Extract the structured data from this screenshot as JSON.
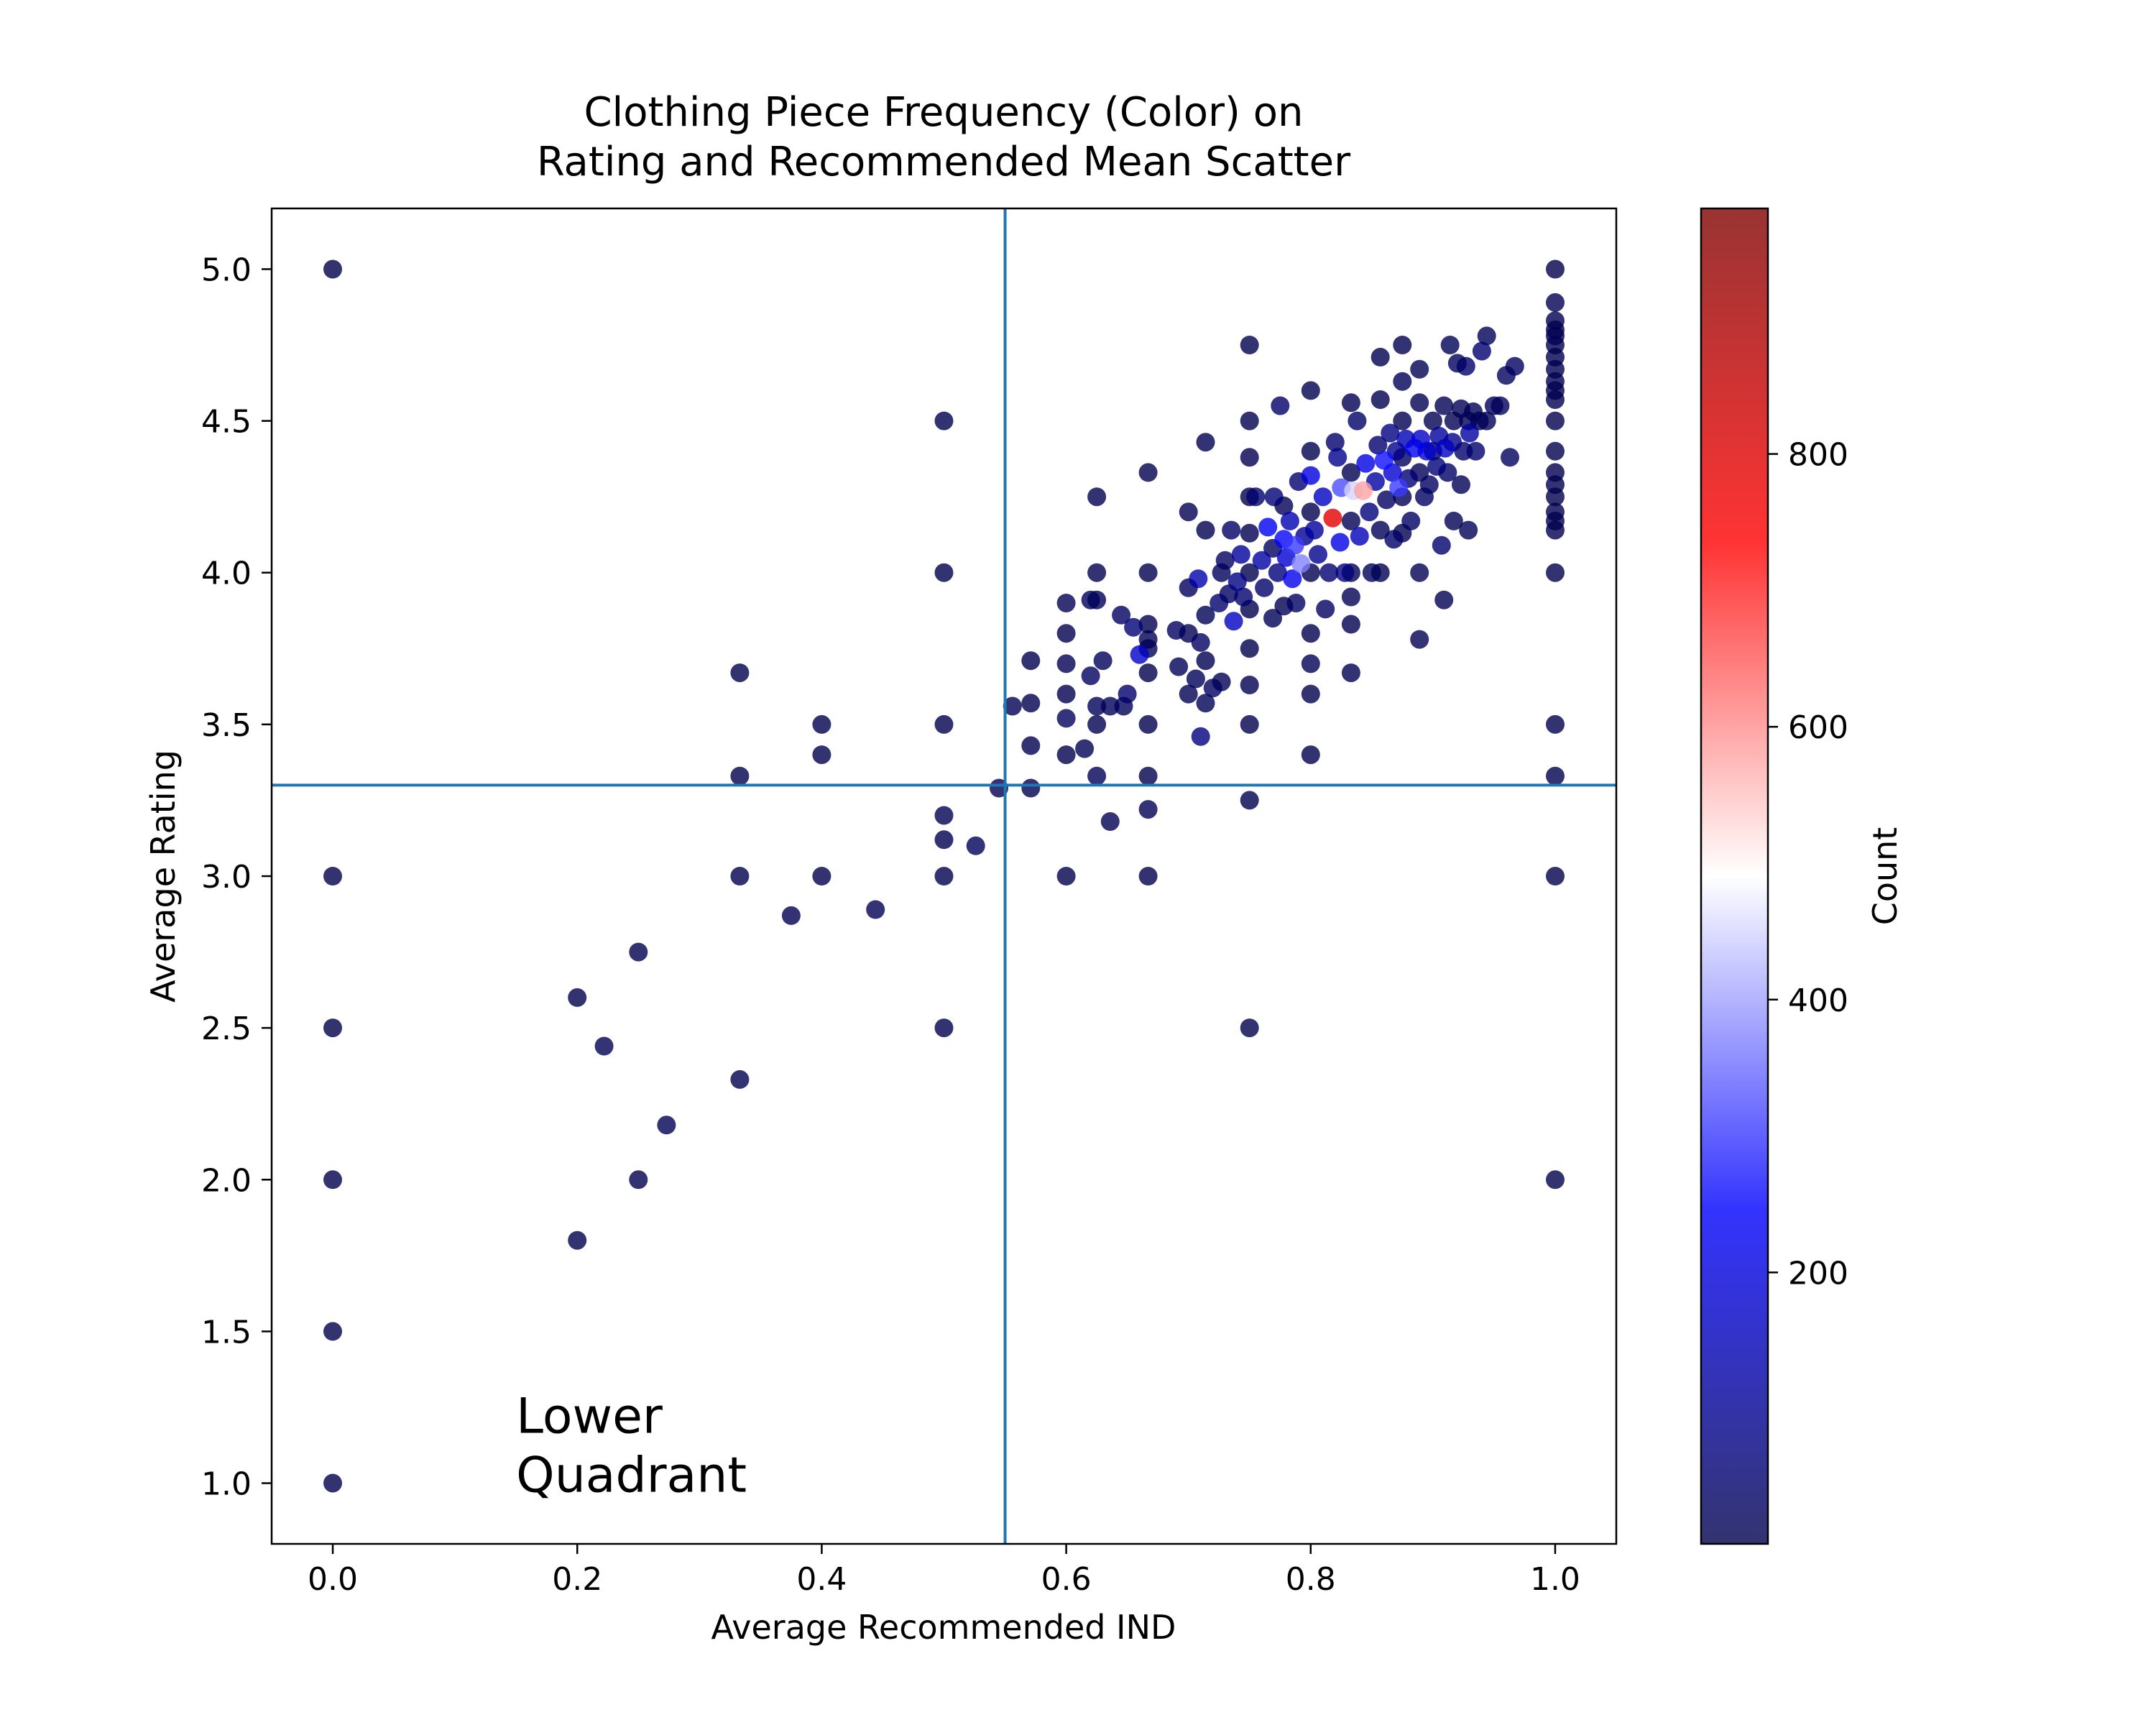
{
  "chart_data": {
    "type": "scatter",
    "title_line1": "Clothing Piece Frequency (Color) on",
    "title_line2": "Rating and Recommended Mean Scatter",
    "xlabel": "Average Recommended IND",
    "ylabel": "Average Rating",
    "xlim": [
      -0.05,
      1.05
    ],
    "ylim": [
      0.8,
      5.2
    ],
    "x_ticks": [
      "0.0",
      "0.2",
      "0.4",
      "0.6",
      "0.8",
      "1.0"
    ],
    "y_ticks": [
      "1.0",
      "1.5",
      "2.0",
      "2.5",
      "3.0",
      "3.5",
      "4.0",
      "4.5",
      "5.0"
    ],
    "vline_x": 0.55,
    "hline_y": 3.3,
    "line_color": "#1f77b4",
    "annotation": {
      "line1": "Lower",
      "line2": "Quadrant",
      "x": 0.15,
      "y": 1.0
    },
    "colorbar": {
      "label": "Count",
      "range": [
        1,
        980
      ],
      "ticks": [
        "200",
        "400",
        "600",
        "800"
      ],
      "colormap": "seismic",
      "colors": [
        "#00004c",
        "#0000ff",
        "#ffffff",
        "#ff0000",
        "#800000"
      ]
    },
    "points": [
      {
        "x": 0.0,
        "y": 5.0,
        "c": 1
      },
      {
        "x": 0.0,
        "y": 3.0,
        "c": 1
      },
      {
        "x": 0.0,
        "y": 2.5,
        "c": 1
      },
      {
        "x": 0.0,
        "y": 2.0,
        "c": 1
      },
      {
        "x": 0.0,
        "y": 1.5,
        "c": 1
      },
      {
        "x": 0.0,
        "y": 1.0,
        "c": 1
      },
      {
        "x": 0.2,
        "y": 2.6,
        "c": 5
      },
      {
        "x": 0.2,
        "y": 1.8,
        "c": 5
      },
      {
        "x": 0.222,
        "y": 2.44,
        "c": 9
      },
      {
        "x": 0.25,
        "y": 2.75,
        "c": 4
      },
      {
        "x": 0.25,
        "y": 2.0,
        "c": 4
      },
      {
        "x": 0.273,
        "y": 2.18,
        "c": 11
      },
      {
        "x": 0.333,
        "y": 3.67,
        "c": 3
      },
      {
        "x": 0.333,
        "y": 3.33,
        "c": 3
      },
      {
        "x": 0.333,
        "y": 3.0,
        "c": 3
      },
      {
        "x": 0.333,
        "y": 2.33,
        "c": 3
      },
      {
        "x": 0.375,
        "y": 2.87,
        "c": 8
      },
      {
        "x": 0.4,
        "y": 3.5,
        "c": 5
      },
      {
        "x": 0.4,
        "y": 3.4,
        "c": 5
      },
      {
        "x": 0.4,
        "y": 3.0,
        "c": 5
      },
      {
        "x": 0.444,
        "y": 2.89,
        "c": 9
      },
      {
        "x": 0.5,
        "y": 4.5,
        "c": 2
      },
      {
        "x": 0.5,
        "y": 4.0,
        "c": 2
      },
      {
        "x": 0.5,
        "y": 3.5,
        "c": 2
      },
      {
        "x": 0.5,
        "y": 3.2,
        "c": 10
      },
      {
        "x": 0.5,
        "y": 3.12,
        "c": 8
      },
      {
        "x": 0.5,
        "y": 3.0,
        "c": 2
      },
      {
        "x": 0.5,
        "y": 2.5,
        "c": 2
      },
      {
        "x": 0.526,
        "y": 3.1,
        "c": 19
      },
      {
        "x": 0.545,
        "y": 3.29,
        "c": 11
      },
      {
        "x": 0.556,
        "y": 3.56,
        "c": 9
      },
      {
        "x": 0.571,
        "y": 3.71,
        "c": 7
      },
      {
        "x": 0.571,
        "y": 3.57,
        "c": 7
      },
      {
        "x": 0.571,
        "y": 3.43,
        "c": 7
      },
      {
        "x": 0.571,
        "y": 3.29,
        "c": 7
      },
      {
        "x": 0.6,
        "y": 3.9,
        "c": 10
      },
      {
        "x": 0.6,
        "y": 3.8,
        "c": 5
      },
      {
        "x": 0.6,
        "y": 3.7,
        "c": 10
      },
      {
        "x": 0.6,
        "y": 3.6,
        "c": 5
      },
      {
        "x": 0.6,
        "y": 3.52,
        "c": 25
      },
      {
        "x": 0.6,
        "y": 3.4,
        "c": 5
      },
      {
        "x": 0.6,
        "y": 3.0,
        "c": 5
      },
      {
        "x": 0.615,
        "y": 3.42,
        "c": 13
      },
      {
        "x": 0.62,
        "y": 3.91,
        "c": 21
      },
      {
        "x": 0.625,
        "y": 4.25,
        "c": 8
      },
      {
        "x": 0.625,
        "y": 4.0,
        "c": 8
      },
      {
        "x": 0.625,
        "y": 3.91,
        "c": 16
      },
      {
        "x": 0.625,
        "y": 3.56,
        "c": 16
      },
      {
        "x": 0.625,
        "y": 3.5,
        "c": 8
      },
      {
        "x": 0.625,
        "y": 3.33,
        "c": 16
      },
      {
        "x": 0.62,
        "y": 3.66,
        "c": 25
      },
      {
        "x": 0.63,
        "y": 3.71,
        "c": 22
      },
      {
        "x": 0.636,
        "y": 3.18,
        "c": 11
      },
      {
        "x": 0.636,
        "y": 3.56,
        "c": 22
      },
      {
        "x": 0.645,
        "y": 3.86,
        "c": 31
      },
      {
        "x": 0.65,
        "y": 3.6,
        "c": 40
      },
      {
        "x": 0.647,
        "y": 3.56,
        "c": 17
      },
      {
        "x": 0.667,
        "y": 4.33,
        "c": 3
      },
      {
        "x": 0.667,
        "y": 4.0,
        "c": 3
      },
      {
        "x": 0.667,
        "y": 3.83,
        "c": 6
      },
      {
        "x": 0.667,
        "y": 3.78,
        "c": 9
      },
      {
        "x": 0.667,
        "y": 3.75,
        "c": 12
      },
      {
        "x": 0.667,
        "y": 3.67,
        "c": 3
      },
      {
        "x": 0.667,
        "y": 3.5,
        "c": 6
      },
      {
        "x": 0.667,
        "y": 3.33,
        "c": 3
      },
      {
        "x": 0.667,
        "y": 3.22,
        "c": 9
      },
      {
        "x": 0.667,
        "y": 3.0,
        "c": 3
      },
      {
        "x": 0.66,
        "y": 3.73,
        "c": 170
      },
      {
        "x": 0.655,
        "y": 3.82,
        "c": 58
      },
      {
        "x": 0.69,
        "y": 3.81,
        "c": 29
      },
      {
        "x": 0.692,
        "y": 3.69,
        "c": 13
      },
      {
        "x": 0.7,
        "y": 4.2,
        "c": 10
      },
      {
        "x": 0.7,
        "y": 3.95,
        "c": 20
      },
      {
        "x": 0.7,
        "y": 3.8,
        "c": 10
      },
      {
        "x": 0.7,
        "y": 3.6,
        "c": 10
      },
      {
        "x": 0.706,
        "y": 3.65,
        "c": 17
      },
      {
        "x": 0.708,
        "y": 3.98,
        "c": 130
      },
      {
        "x": 0.71,
        "y": 3.77,
        "c": 31
      },
      {
        "x": 0.71,
        "y": 3.46,
        "c": 70
      },
      {
        "x": 0.714,
        "y": 4.43,
        "c": 7
      },
      {
        "x": 0.714,
        "y": 4.14,
        "c": 7
      },
      {
        "x": 0.714,
        "y": 3.86,
        "c": 14
      },
      {
        "x": 0.714,
        "y": 3.71,
        "c": 7
      },
      {
        "x": 0.714,
        "y": 3.57,
        "c": 14
      },
      {
        "x": 0.72,
        "y": 3.62,
        "c": 25
      },
      {
        "x": 0.725,
        "y": 3.9,
        "c": 40
      },
      {
        "x": 0.727,
        "y": 4.0,
        "c": 22
      },
      {
        "x": 0.727,
        "y": 3.64,
        "c": 11
      },
      {
        "x": 0.73,
        "y": 4.04,
        "c": 26
      },
      {
        "x": 0.733,
        "y": 3.93,
        "c": 30
      },
      {
        "x": 0.735,
        "y": 4.14,
        "c": 34
      },
      {
        "x": 0.737,
        "y": 3.84,
        "c": 160
      },
      {
        "x": 0.74,
        "y": 3.97,
        "c": 80
      },
      {
        "x": 0.745,
        "y": 3.92,
        "c": 47
      },
      {
        "x": 0.743,
        "y": 4.06,
        "c": 110
      },
      {
        "x": 0.75,
        "y": 4.75,
        "c": 4
      },
      {
        "x": 0.75,
        "y": 4.5,
        "c": 4
      },
      {
        "x": 0.75,
        "y": 4.38,
        "c": 8
      },
      {
        "x": 0.75,
        "y": 4.25,
        "c": 4
      },
      {
        "x": 0.75,
        "y": 4.13,
        "c": 8
      },
      {
        "x": 0.75,
        "y": 4.0,
        "c": 4
      },
      {
        "x": 0.75,
        "y": 3.88,
        "c": 8
      },
      {
        "x": 0.75,
        "y": 3.75,
        "c": 4
      },
      {
        "x": 0.75,
        "y": 3.63,
        "c": 8
      },
      {
        "x": 0.75,
        "y": 3.5,
        "c": 4
      },
      {
        "x": 0.75,
        "y": 3.25,
        "c": 4
      },
      {
        "x": 0.75,
        "y": 2.5,
        "c": 4
      },
      {
        "x": 0.755,
        "y": 4.25,
        "c": 49
      },
      {
        "x": 0.76,
        "y": 4.04,
        "c": 120
      },
      {
        "x": 0.762,
        "y": 3.95,
        "c": 42
      },
      {
        "x": 0.765,
        "y": 4.15,
        "c": 230
      },
      {
        "x": 0.769,
        "y": 3.85,
        "c": 13
      },
      {
        "x": 0.769,
        "y": 4.08,
        "c": 26
      },
      {
        "x": 0.77,
        "y": 4.25,
        "c": 60
      },
      {
        "x": 0.773,
        "y": 4.0,
        "c": 66
      },
      {
        "x": 0.775,
        "y": 4.55,
        "c": 40
      },
      {
        "x": 0.778,
        "y": 4.22,
        "c": 9
      },
      {
        "x": 0.778,
        "y": 4.11,
        "c": 250
      },
      {
        "x": 0.778,
        "y": 3.89,
        "c": 9
      },
      {
        "x": 0.78,
        "y": 4.05,
        "c": 180
      },
      {
        "x": 0.783,
        "y": 4.17,
        "c": 140
      },
      {
        "x": 0.785,
        "y": 3.98,
        "c": 220
      },
      {
        "x": 0.787,
        "y": 4.09,
        "c": 300
      },
      {
        "x": 0.788,
        "y": 3.9,
        "c": 33
      },
      {
        "x": 0.79,
        "y": 4.3,
        "c": 52
      },
      {
        "x": 0.792,
        "y": 4.03,
        "c": 370
      },
      {
        "x": 0.795,
        "y": 4.12,
        "c": 96
      },
      {
        "x": 0.8,
        "y": 4.6,
        "c": 5
      },
      {
        "x": 0.8,
        "y": 4.4,
        "c": 5
      },
      {
        "x": 0.8,
        "y": 4.2,
        "c": 5
      },
      {
        "x": 0.8,
        "y": 4.0,
        "c": 5
      },
      {
        "x": 0.8,
        "y": 3.8,
        "c": 5
      },
      {
        "x": 0.8,
        "y": 3.7,
        "c": 10
      },
      {
        "x": 0.8,
        "y": 3.6,
        "c": 5
      },
      {
        "x": 0.8,
        "y": 3.4,
        "c": 5
      },
      {
        "x": 0.8,
        "y": 4.32,
        "c": 200
      },
      {
        "x": 0.803,
        "y": 4.14,
        "c": 110
      },
      {
        "x": 0.806,
        "y": 4.06,
        "c": 88
      },
      {
        "x": 0.81,
        "y": 4.25,
        "c": 160
      },
      {
        "x": 0.812,
        "y": 3.88,
        "c": 32
      },
      {
        "x": 0.815,
        "y": 4.0,
        "c": 54
      },
      {
        "x": 0.818,
        "y": 4.18,
        "c": 790
      },
      {
        "x": 0.82,
        "y": 4.43,
        "c": 45
      },
      {
        "x": 0.822,
        "y": 4.38,
        "c": 90
      },
      {
        "x": 0.824,
        "y": 4.1,
        "c": 210
      },
      {
        "x": 0.825,
        "y": 4.28,
        "c": 320
      },
      {
        "x": 0.828,
        "y": 4.0,
        "c": 70
      },
      {
        "x": 0.833,
        "y": 4.56,
        "c": 6
      },
      {
        "x": 0.833,
        "y": 4.33,
        "c": 6
      },
      {
        "x": 0.833,
        "y": 4.17,
        "c": 12
      },
      {
        "x": 0.833,
        "y": 4.0,
        "c": 6
      },
      {
        "x": 0.833,
        "y": 3.92,
        "c": 12
      },
      {
        "x": 0.833,
        "y": 3.83,
        "c": 6
      },
      {
        "x": 0.833,
        "y": 3.67,
        "c": 6
      },
      {
        "x": 0.835,
        "y": 4.27,
        "c": 450
      },
      {
        "x": 0.838,
        "y": 4.5,
        "c": 37
      },
      {
        "x": 0.84,
        "y": 4.12,
        "c": 150
      },
      {
        "x": 0.843,
        "y": 4.27,
        "c": 580
      },
      {
        "x": 0.845,
        "y": 4.36,
        "c": 210
      },
      {
        "x": 0.848,
        "y": 4.2,
        "c": 66
      },
      {
        "x": 0.85,
        "y": 4.0,
        "c": 20
      },
      {
        "x": 0.853,
        "y": 4.3,
        "c": 120
      },
      {
        "x": 0.855,
        "y": 4.42,
        "c": 48
      },
      {
        "x": 0.857,
        "y": 4.71,
        "c": 7
      },
      {
        "x": 0.857,
        "y": 4.57,
        "c": 7
      },
      {
        "x": 0.857,
        "y": 4.14,
        "c": 14
      },
      {
        "x": 0.857,
        "y": 4.0,
        "c": 7
      },
      {
        "x": 0.86,
        "y": 4.37,
        "c": 260
      },
      {
        "x": 0.862,
        "y": 4.24,
        "c": 29
      },
      {
        "x": 0.865,
        "y": 4.46,
        "c": 74
      },
      {
        "x": 0.867,
        "y": 4.33,
        "c": 180
      },
      {
        "x": 0.868,
        "y": 4.11,
        "c": 38
      },
      {
        "x": 0.87,
        "y": 4.4,
        "c": 90
      },
      {
        "x": 0.872,
        "y": 4.28,
        "c": 300
      },
      {
        "x": 0.875,
        "y": 4.75,
        "c": 8
      },
      {
        "x": 0.875,
        "y": 4.63,
        "c": 16
      },
      {
        "x": 0.875,
        "y": 4.5,
        "c": 8
      },
      {
        "x": 0.875,
        "y": 4.38,
        "c": 16
      },
      {
        "x": 0.875,
        "y": 4.25,
        "c": 8
      },
      {
        "x": 0.875,
        "y": 4.13,
        "c": 8
      },
      {
        "x": 0.878,
        "y": 4.44,
        "c": 140
      },
      {
        "x": 0.88,
        "y": 4.31,
        "c": 50
      },
      {
        "x": 0.882,
        "y": 4.17,
        "c": 34
      },
      {
        "x": 0.885,
        "y": 4.41,
        "c": 220
      },
      {
        "x": 0.889,
        "y": 4.67,
        "c": 9
      },
      {
        "x": 0.889,
        "y": 4.56,
        "c": 9
      },
      {
        "x": 0.889,
        "y": 4.33,
        "c": 18
      },
      {
        "x": 0.889,
        "y": 4.0,
        "c": 9
      },
      {
        "x": 0.889,
        "y": 3.78,
        "c": 9
      },
      {
        "x": 0.89,
        "y": 4.44,
        "c": 170
      },
      {
        "x": 0.893,
        "y": 4.25,
        "c": 28
      },
      {
        "x": 0.895,
        "y": 4.4,
        "c": 190
      },
      {
        "x": 0.897,
        "y": 4.29,
        "c": 29
      },
      {
        "x": 0.9,
        "y": 4.5,
        "c": 10
      },
      {
        "x": 0.9,
        "y": 4.4,
        "c": 20
      },
      {
        "x": 0.903,
        "y": 4.35,
        "c": 62
      },
      {
        "x": 0.905,
        "y": 4.45,
        "c": 105
      },
      {
        "x": 0.907,
        "y": 4.09,
        "c": 43
      },
      {
        "x": 0.909,
        "y": 4.55,
        "c": 11
      },
      {
        "x": 0.909,
        "y": 3.91,
        "c": 11
      },
      {
        "x": 0.91,
        "y": 4.41,
        "c": 160
      },
      {
        "x": 0.912,
        "y": 4.33,
        "c": 34
      },
      {
        "x": 0.914,
        "y": 4.75,
        "c": 14
      },
      {
        "x": 0.916,
        "y": 4.43,
        "c": 85
      },
      {
        "x": 0.917,
        "y": 4.5,
        "c": 12
      },
      {
        "x": 0.917,
        "y": 4.17,
        "c": 12
      },
      {
        "x": 0.92,
        "y": 4.69,
        "c": 25
      },
      {
        "x": 0.923,
        "y": 4.54,
        "c": 13
      },
      {
        "x": 0.923,
        "y": 4.29,
        "c": 13
      },
      {
        "x": 0.925,
        "y": 4.4,
        "c": 40
      },
      {
        "x": 0.927,
        "y": 4.68,
        "c": 41
      },
      {
        "x": 0.929,
        "y": 4.5,
        "c": 14
      },
      {
        "x": 0.929,
        "y": 4.14,
        "c": 14
      },
      {
        "x": 0.93,
        "y": 4.46,
        "c": 120
      },
      {
        "x": 0.933,
        "y": 4.53,
        "c": 15
      },
      {
        "x": 0.935,
        "y": 4.4,
        "c": 46
      },
      {
        "x": 0.938,
        "y": 4.5,
        "c": 16
      },
      {
        "x": 0.94,
        "y": 4.73,
        "c": 50
      },
      {
        "x": 0.944,
        "y": 4.78,
        "c": 18
      },
      {
        "x": 0.944,
        "y": 4.5,
        "c": 18
      },
      {
        "x": 0.95,
        "y": 4.55,
        "c": 20
      },
      {
        "x": 0.955,
        "y": 4.55,
        "c": 22
      },
      {
        "x": 0.96,
        "y": 4.65,
        "c": 25
      },
      {
        "x": 0.963,
        "y": 4.38,
        "c": 27
      },
      {
        "x": 0.967,
        "y": 4.68,
        "c": 30
      },
      {
        "x": 1.0,
        "y": 5.0,
        "c": 1
      },
      {
        "x": 1.0,
        "y": 4.89,
        "c": 9
      },
      {
        "x": 1.0,
        "y": 4.83,
        "c": 6
      },
      {
        "x": 1.0,
        "y": 4.8,
        "c": 5
      },
      {
        "x": 1.0,
        "y": 4.78,
        "c": 9
      },
      {
        "x": 1.0,
        "y": 4.75,
        "c": 4
      },
      {
        "x": 1.0,
        "y": 4.71,
        "c": 7
      },
      {
        "x": 1.0,
        "y": 4.67,
        "c": 3
      },
      {
        "x": 1.0,
        "y": 4.63,
        "c": 8
      },
      {
        "x": 1.0,
        "y": 4.6,
        "c": 5
      },
      {
        "x": 1.0,
        "y": 4.57,
        "c": 7
      },
      {
        "x": 1.0,
        "y": 4.5,
        "c": 2
      },
      {
        "x": 1.0,
        "y": 4.4,
        "c": 5
      },
      {
        "x": 1.0,
        "y": 4.33,
        "c": 3
      },
      {
        "x": 1.0,
        "y": 4.29,
        "c": 7
      },
      {
        "x": 1.0,
        "y": 4.25,
        "c": 4
      },
      {
        "x": 1.0,
        "y": 4.2,
        "c": 5
      },
      {
        "x": 1.0,
        "y": 4.17,
        "c": 6
      },
      {
        "x": 1.0,
        "y": 4.14,
        "c": 7
      },
      {
        "x": 1.0,
        "y": 4.0,
        "c": 1
      },
      {
        "x": 1.0,
        "y": 3.5,
        "c": 2
      },
      {
        "x": 1.0,
        "y": 3.33,
        "c": 3
      },
      {
        "x": 1.0,
        "y": 3.0,
        "c": 1
      },
      {
        "x": 1.0,
        "y": 2.0,
        "c": 1
      }
    ]
  }
}
